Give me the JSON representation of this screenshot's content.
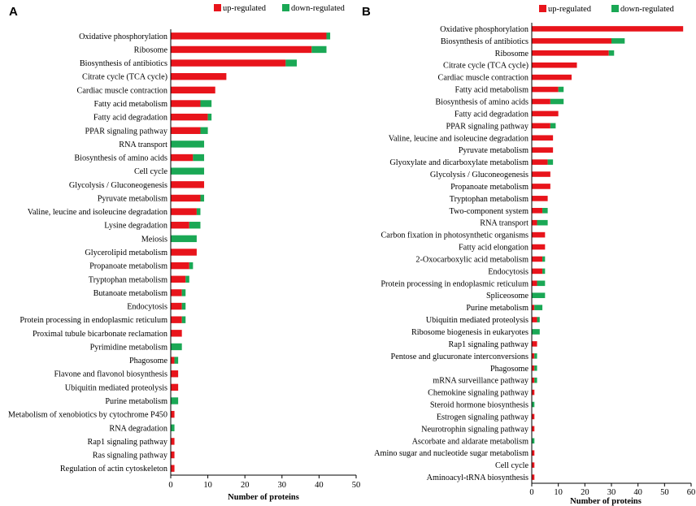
{
  "colors": {
    "up": "#e8141b",
    "down": "#1aa855",
    "axis": "#000000"
  },
  "chart_data": [
    {
      "panel": "A",
      "type": "bar",
      "orientation": "horizontal",
      "stacked": true,
      "legend": {
        "up": "up-regulated",
        "down": "down-regulated",
        "position": "top-right"
      },
      "xlabel": "Number of proteins",
      "xlim": [
        0,
        50
      ],
      "xticks": [
        0,
        10,
        20,
        30,
        40,
        50
      ],
      "categories": [
        "Oxidative phosphorylation",
        "Ribosome",
        "Biosynthesis of antibiotics",
        "Citrate cycle (TCA cycle)",
        "Cardiac muscle contraction",
        "Fatty acid metabolism",
        "Fatty acid degradation",
        "PPAR signaling pathway",
        "RNA transport",
        "Biosynthesis of amino acids",
        "Cell cycle",
        "Glycolysis / Gluconeogenesis",
        "Pyruvate metabolism",
        "Valine, leucine and isoleucine degradation",
        "Lysine degradation",
        "Meiosis",
        "Glycerolipid metabolism",
        "Propanoate metabolism",
        "Tryptophan metabolism",
        "Butanoate metabolism",
        "Endocytosis",
        "Protein processing in endoplasmic reticulum",
        "Proximal tubule bicarbonate reclamation",
        "Pyrimidine metabolism",
        "Phagosome",
        "Flavone and flavonol biosynthesis",
        "Ubiquitin mediated proteolysis",
        "Purine metabolism",
        "Metabolism of xenobiotics by cytochrome P450",
        "RNA degradation",
        "Rap1 signaling pathway",
        "Ras signaling pathway",
        "Regulation of actin cytoskeleton"
      ],
      "series": [
        {
          "name": "up-regulated",
          "values": [
            42,
            38,
            31,
            15,
            12,
            8,
            10,
            8,
            0,
            6,
            0,
            9,
            8,
            7,
            5,
            0,
            7,
            5,
            4,
            3,
            3,
            3,
            3,
            0,
            1,
            2,
            2,
            0,
            1,
            0,
            1,
            1,
            1
          ]
        },
        {
          "name": "down-regulated",
          "values": [
            1,
            4,
            3,
            0,
            0,
            3,
            1,
            2,
            9,
            3,
            9,
            0,
            1,
            1,
            3,
            7,
            0,
            1,
            1,
            1,
            1,
            1,
            0,
            3,
            1,
            0,
            0,
            2,
            0,
            1,
            0,
            0,
            0
          ]
        }
      ]
    },
    {
      "panel": "B",
      "type": "bar",
      "orientation": "horizontal",
      "stacked": true,
      "legend": {
        "up": "up-regulated",
        "down": "down-regulated",
        "position": "top-right"
      },
      "xlabel": "Number of proteins",
      "xlim": [
        0,
        60
      ],
      "xticks": [
        0,
        10,
        20,
        30,
        40,
        50,
        60
      ],
      "categories": [
        "Oxidative phosphorylation",
        "Biosynthesis of antibiotics",
        "Ribosome",
        "Citrate cycle (TCA cycle)",
        "Cardiac muscle contraction",
        "Fatty acid metabolism",
        "Biosynthesis of amino acids",
        "Fatty acid degradation",
        "PPAR signaling pathway",
        "Valine, leucine and isoleucine degradation",
        "Pyruvate metabolism",
        "Glyoxylate and dicarboxylate metabolism",
        "Glycolysis / Gluconeogenesis",
        "Propanoate metabolism",
        "Tryptophan metabolism",
        "Two-component system",
        "RNA transport",
        "Carbon fixation in photosynthetic organisms",
        "Fatty acid elongation",
        "2-Oxocarboxylic acid metabolism",
        "Endocytosis",
        "Protein processing in endoplasmic reticulum",
        "Spliceosome",
        "Purine metabolism",
        "Ubiquitin mediated proteolysis",
        "Ribosome biogenesis in eukaryotes",
        "Rap1 signaling pathway",
        "Pentose and glucuronate interconversions",
        "Phagosome",
        "mRNA surveillance pathway",
        "Chemokine signaling pathway",
        "Steroid hormone biosynthesis",
        "Estrogen signaling pathway",
        "Neurotrophin signaling pathway",
        "Ascorbate and aldarate metabolism",
        "Amino sugar and nucleotide sugar metabolism",
        "Cell cycle",
        "Aminoacyl-tRNA biosynthesis"
      ],
      "series": [
        {
          "name": "up-regulated",
          "values": [
            57,
            30,
            29,
            17,
            15,
            10,
            7,
            10,
            7,
            8,
            8,
            6,
            7,
            7,
            6,
            4,
            2,
            5,
            5,
            4,
            4,
            2,
            0,
            1,
            2,
            0,
            2,
            1,
            1,
            1,
            1,
            0,
            1,
            1,
            0,
            1,
            1,
            1
          ]
        },
        {
          "name": "down-regulated",
          "values": [
            0,
            5,
            2,
            0,
            0,
            2,
            5,
            0,
            2,
            0,
            0,
            2,
            0,
            0,
            0,
            2,
            4,
            0,
            0,
            1,
            1,
            3,
            5,
            3,
            1,
            3,
            0,
            1,
            1,
            1,
            0,
            1,
            0,
            0,
            1,
            0,
            0,
            0
          ]
        }
      ]
    }
  ]
}
